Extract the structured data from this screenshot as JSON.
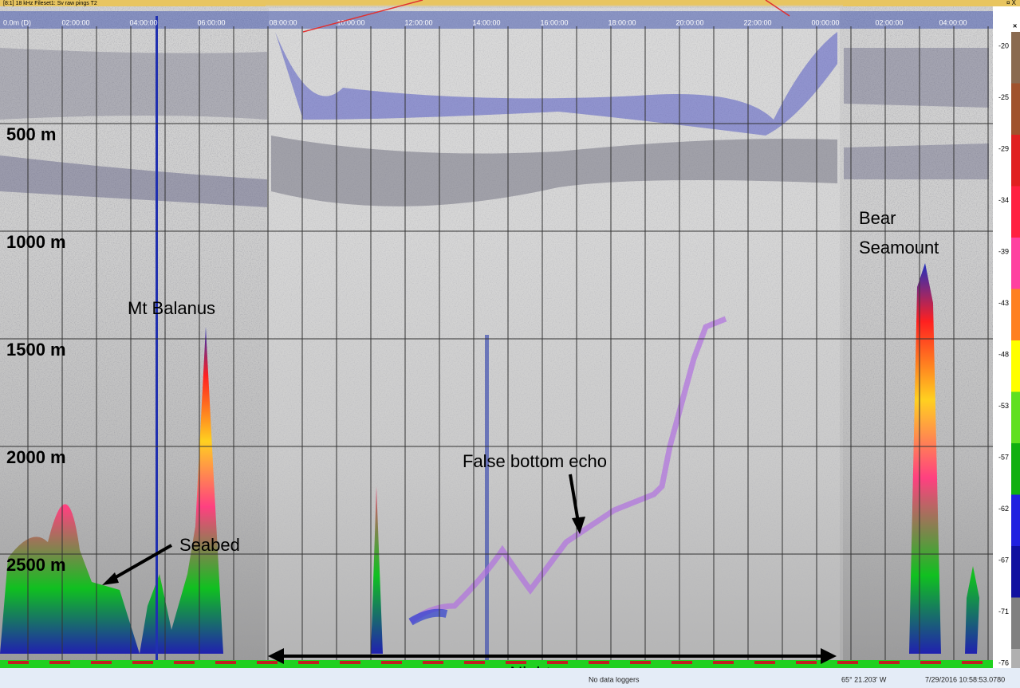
{
  "window": {
    "title": "[8:1] 18 kHz Fileset1: Sv raw pings T2",
    "depth_origin": "0.0m (D)"
  },
  "depth_labels": [
    "500 m",
    "1000 m",
    "1500 m",
    "2000 m",
    "2500 m"
  ],
  "time_labels_left": [
    "02:00:00",
    "04:00:00",
    "06:00:00"
  ],
  "time_labels_middle": [
    "08:00:00",
    "10:00:00",
    "12:00:00",
    "14:00:00",
    "16:00:00",
    "18:00:00",
    "20:00:00",
    "22:00:00",
    "00:00:00"
  ],
  "time_labels_right": [
    "02:00:00",
    "04:00:00"
  ],
  "annotations": {
    "mt_balanus": "Mt Balanus",
    "seabed": "Seabed",
    "false_bottom": "False bottom echo",
    "bear_seamount": [
      "Bear",
      "Seamount"
    ],
    "night": "Night"
  },
  "color_scale": [
    -20,
    -25,
    -29,
    -34,
    -39,
    -43,
    -48,
    -53,
    -57,
    -62,
    -67,
    -71,
    -76
  ],
  "status_bar": {
    "loggers": "No data loggers",
    "longitude": "65° 21.203' W",
    "timestamp": "7/29/2016 10:58:53.0780"
  }
}
